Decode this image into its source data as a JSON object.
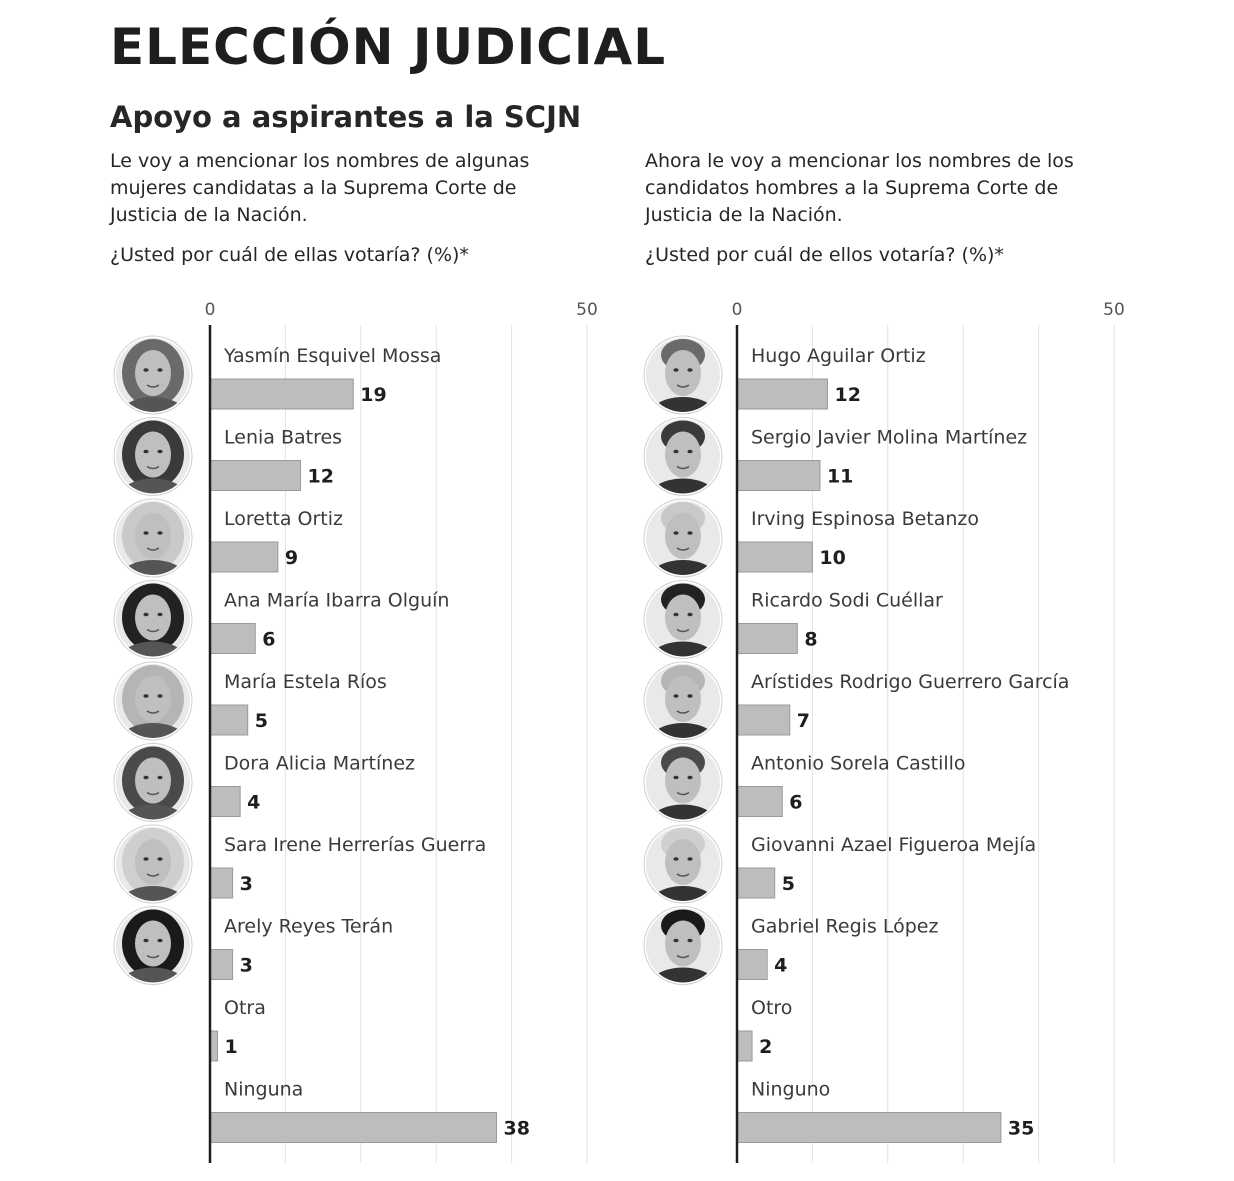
{
  "title": "ELECCIÓN JUDICIAL",
  "subtitle": "Apoyo a aspirantes a la SCJN",
  "left_panel": {
    "question": "Le voy a mencionar los nombres de algunas mujeres candidatas a la Suprema Corte de Justicia de la Nación.",
    "prompt": "¿Usted por cuál de ellas votaría? (%)*"
  },
  "right_panel": {
    "question": "Ahora le voy a mencionar los nombres de los candidatos hombres a la Suprema Corte de Justicia de la Nación.",
    "prompt": "¿Usted por cuál de ellos votaría? (%)*"
  },
  "colors": {
    "bar": "#bdbdbd",
    "axis": "#1e1e1e",
    "text": "#1e1e1e"
  },
  "chart_data": [
    {
      "type": "bar",
      "orientation": "horizontal",
      "title": "¿Usted por cuál de ellas votaría? (%)*",
      "xlim": [
        0,
        50
      ],
      "xticks": [
        0,
        50
      ],
      "grid": true,
      "categories": [
        "Yasmín Esquivel Mossa",
        "Lenia Batres",
        "Loretta Ortiz",
        "Ana María Ibarra Olguín",
        "María Estela Ríos",
        "Dora Alicia Martínez",
        "Sara Irene Herrerías Guerra",
        "Arely Reyes Terán",
        "Otra",
        "Ninguna"
      ],
      "values": [
        19,
        12,
        9,
        6,
        5,
        4,
        3,
        3,
        1,
        38
      ],
      "photos": [
        true,
        true,
        true,
        true,
        true,
        true,
        true,
        true,
        false,
        false
      ]
    },
    {
      "type": "bar",
      "orientation": "horizontal",
      "title": "¿Usted por cuál de ellos votaría? (%)*",
      "xlim": [
        0,
        50
      ],
      "xticks": [
        0,
        50
      ],
      "grid": true,
      "categories": [
        "Hugo Aguilar Ortiz",
        "Sergio Javier Molina Martínez",
        "Irving Espinosa Betanzo",
        "Ricardo Sodi Cuéllar",
        "Arístides Rodrigo Guerrero García",
        "Antonio Sorela Castillo",
        "Giovanni Azael Figueroa Mejía",
        "Gabriel Regis López",
        "Otro",
        "Ninguno"
      ],
      "values": [
        12,
        11,
        10,
        8,
        7,
        6,
        5,
        4,
        2,
        35
      ],
      "photos": [
        true,
        true,
        true,
        true,
        true,
        true,
        true,
        true,
        false,
        false
      ]
    }
  ]
}
